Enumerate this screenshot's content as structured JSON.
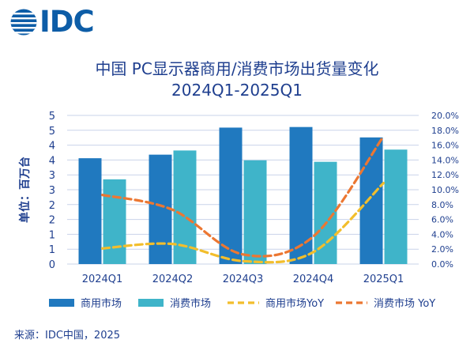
{
  "logo": {
    "text": "IDC",
    "icon": "globe-stripes-icon"
  },
  "title_line1": "中国 PC显示器商用/消费市场出货量变化",
  "title_line2": "2024Q1-2025Q1",
  "source": "来源：IDC中国，2025",
  "colors": {
    "commercial_bar": "#2079bf",
    "consumer_bar": "#3fb4c9",
    "commercial_yoy": "#f2be2c",
    "consumer_yoy": "#ec7732",
    "axis_text": "#1f3f8f",
    "grid": "#c9d3ea"
  },
  "chart_data": {
    "type": "bar",
    "categories": [
      "2024Q1",
      "2024Q2",
      "2024Q3",
      "2024Q4",
      "2025Q1"
    ],
    "ylabel": "单位：百万台",
    "ylim": [
      0,
      5
    ],
    "y_ticks": [
      "0",
      "1",
      "1",
      "2",
      "2",
      "3",
      "3",
      "4",
      "4",
      "5",
      "5"
    ],
    "y2lim": [
      0,
      20
    ],
    "y2_ticks": [
      "0.0%",
      "2.0%",
      "4.0%",
      "6.0%",
      "8.0%",
      "10.0%",
      "12.0%",
      "14.0%",
      "16.0%",
      "18.0%",
      "20.0%"
    ],
    "grid": true,
    "legend_position": "bottom",
    "series": [
      {
        "name": "商用市场",
        "type": "bar",
        "axis": "left",
        "values": [
          3.56,
          3.68,
          4.59,
          4.61,
          4.26
        ]
      },
      {
        "name": "消费市场",
        "type": "bar",
        "axis": "left",
        "values": [
          2.85,
          3.82,
          3.49,
          3.44,
          3.85
        ]
      },
      {
        "name": "商用市场YoY",
        "type": "line",
        "style": "dashed",
        "axis": "right",
        "values": [
          2.1,
          2.7,
          0.4,
          1.6,
          10.9
        ]
      },
      {
        "name": "消费市场 YoY",
        "type": "line",
        "style": "dashed",
        "axis": "right",
        "values": [
          9.3,
          7.3,
          1.3,
          3.7,
          17.2
        ]
      }
    ]
  }
}
